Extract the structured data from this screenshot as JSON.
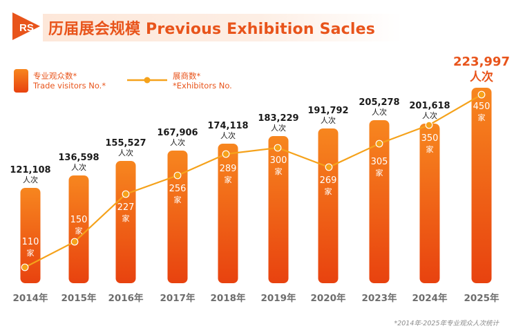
{
  "header": {
    "logo_text": "RS",
    "title": "历届展会规模 Previous Exhibition Sacles"
  },
  "legend": {
    "bars": {
      "line1": "专业观众数*",
      "line2": "Trade visitors No.*"
    },
    "line": {
      "line1": "展商数*",
      "line2": "*Exhibitors No."
    }
  },
  "chart_data": {
    "type": "bar",
    "title": "历届展会规模 Previous Exhibition Sacles",
    "categories": [
      "2014年",
      "2015年",
      "2016年",
      "2017年",
      "2018年",
      "2019年",
      "2020年",
      "2023年",
      "2024年",
      "2025年"
    ],
    "series": [
      {
        "name": "专业观众数* Trade visitors No.*",
        "type": "bar",
        "values": [
          121108,
          136598,
          155527,
          167906,
          174118,
          183229,
          191792,
          205278,
          201618,
          223997
        ],
        "labels": [
          "121,108",
          "136,598",
          "155,527",
          "167,906",
          "174,118",
          "183,229",
          "191,792",
          "205,278",
          "201,618",
          "223,997"
        ],
        "unit": "人次"
      },
      {
        "name": "展商数* *Exhibitors No.",
        "type": "line",
        "values": [
          110,
          150,
          227,
          256,
          289,
          300,
          269,
          305,
          350,
          450
        ],
        "unit": "家"
      }
    ],
    "highlight_index": 9,
    "colors": {
      "bar_top": "#f7861f",
      "bar_bottom": "#e8420f",
      "line": "#f5a21b",
      "highlight": "#e8541b",
      "text": "#1a1a1a",
      "axis_label": "#6d6d6d"
    }
  },
  "footnote": "*2014年-2025年专业观众人次统计"
}
